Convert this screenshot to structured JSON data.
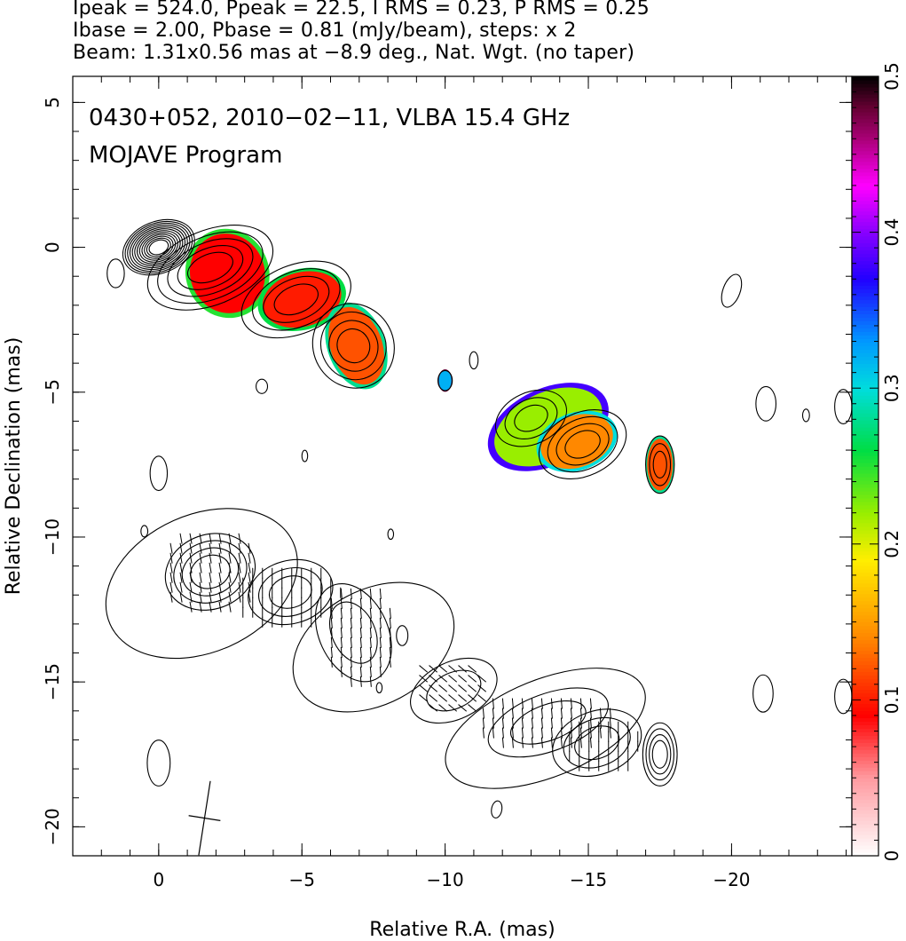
{
  "header": {
    "line1": "Ipeak = 524.0, Ppeak = 22.5, I RMS = 0.23, P RMS = 0.25",
    "line2": "Ibase = 2.00, Pbase = 0.81 (mJy/beam), steps: x 2",
    "line3": "Beam: 1.31x0.56 mas at −8.9 deg., Nat. Wgt. (no taper)"
  },
  "chart_data": {
    "type": "heatmap",
    "title": "0430+052, 2010−02−11, VLBA 15.4 GHz",
    "subtitle": "MOJAVE Program",
    "xlabel": "Relative R.A. (mas)",
    "ylabel": "Relative Declination (mas)",
    "xlim": [
      3,
      -24.2
    ],
    "ylim": [
      -21,
      5.9
    ],
    "x_ticks": [
      {
        "value": 0,
        "label": "0"
      },
      {
        "value": -5,
        "label": "−5"
      },
      {
        "value": -10,
        "label": "−10"
      },
      {
        "value": -15,
        "label": "−15"
      },
      {
        "value": -20,
        "label": "−20"
      }
    ],
    "y_ticks": [
      {
        "value": 5,
        "label": "5"
      },
      {
        "value": 0,
        "label": "0"
      },
      {
        "value": -5,
        "label": "−5"
      },
      {
        "value": -10,
        "label": "−10"
      },
      {
        "value": -15,
        "label": "−15"
      },
      {
        "value": -20,
        "label": "−20"
      }
    ],
    "colorbar": {
      "range": [
        0,
        0.5
      ],
      "ticks": [
        {
          "value": 0,
          "label": "0"
        },
        {
          "value": 0.1,
          "label": "0.1"
        },
        {
          "value": 0.2,
          "label": "0.2"
        },
        {
          "value": 0.3,
          "label": "0.3"
        },
        {
          "value": 0.4,
          "label": "0.4"
        },
        {
          "value": 0.5,
          "label": "0.5"
        }
      ],
      "stops": [
        {
          "v": 0.0,
          "color": "#ffffff"
        },
        {
          "v": 0.05,
          "color": "#ff9aa0"
        },
        {
          "v": 0.09,
          "color": "#ff0000"
        },
        {
          "v": 0.14,
          "color": "#ff8800"
        },
        {
          "v": 0.19,
          "color": "#ffee00"
        },
        {
          "v": 0.22,
          "color": "#99ee00"
        },
        {
          "v": 0.26,
          "color": "#00dd44"
        },
        {
          "v": 0.3,
          "color": "#00dddd"
        },
        {
          "v": 0.33,
          "color": "#0099ff"
        },
        {
          "v": 0.37,
          "color": "#2200ff"
        },
        {
          "v": 0.4,
          "color": "#8800ff"
        },
        {
          "v": 0.43,
          "color": "#ff00ff"
        },
        {
          "v": 0.46,
          "color": "#aa0077"
        },
        {
          "v": 0.48,
          "color": "#660033"
        },
        {
          "v": 0.5,
          "color": "#000000"
        }
      ]
    },
    "total_intensity_components": [
      {
        "x": 0.0,
        "y": 0.0,
        "a": 1.3,
        "b": 0.9,
        "angle": -22,
        "levels": 12
      },
      {
        "x": -1.8,
        "y": -0.7,
        "a": 2.3,
        "b": 1.3,
        "angle": -22,
        "levels": 5
      },
      {
        "x": -4.8,
        "y": -1.8,
        "a": 2.0,
        "b": 1.2,
        "angle": -22,
        "levels": 4
      },
      {
        "x": -6.8,
        "y": -3.4,
        "a": 1.4,
        "b": 1.5,
        "angle": -30,
        "levels": 4
      },
      {
        "x": -10.0,
        "y": -4.6,
        "a": 0.25,
        "b": 0.35,
        "angle": 0,
        "levels": 1
      },
      {
        "x": -13.0,
        "y": -5.9,
        "a": 1.3,
        "b": 0.9,
        "angle": -25,
        "levels": 3
      },
      {
        "x": -14.8,
        "y": -6.8,
        "a": 1.6,
        "b": 1.1,
        "angle": -25,
        "levels": 4
      },
      {
        "x": -17.5,
        "y": -7.5,
        "a": 0.5,
        "b": 1.0,
        "angle": 0,
        "levels": 3
      }
    ],
    "fractional_polarization_regions": [
      {
        "x": -2.4,
        "y": -0.9,
        "a": 1.3,
        "b": 1.4,
        "angle": -20,
        "value": 0.09
      },
      {
        "x": -5.0,
        "y": -1.8,
        "a": 1.4,
        "b": 0.95,
        "angle": -15,
        "value": 0.1
      },
      {
        "x": -6.9,
        "y": -3.4,
        "a": 0.9,
        "b": 1.4,
        "angle": -20,
        "value": 0.12
      },
      {
        "x": -10.0,
        "y": -4.6,
        "a": 0.22,
        "b": 0.35,
        "angle": 0,
        "value": 0.32
      },
      {
        "x": -13.6,
        "y": -6.2,
        "a": 2.0,
        "b": 1.2,
        "angle": -25,
        "value": 0.22
      },
      {
        "x": -14.6,
        "y": -6.7,
        "a": 1.3,
        "b": 0.9,
        "angle": -20,
        "value": 0.14
      },
      {
        "x": -17.5,
        "y": -7.5,
        "a": 0.45,
        "b": 0.9,
        "angle": 0,
        "value": 0.12
      }
    ],
    "polarized_intensity_components": [
      {
        "x": -1.8,
        "y": -11.2,
        "a": 1.6,
        "b": 1.3,
        "angle": -20,
        "levels": 4
      },
      {
        "x": -4.6,
        "y": -11.9,
        "a": 1.5,
        "b": 1.1,
        "angle": -15,
        "levels": 3
      },
      {
        "x": -6.8,
        "y": -13.3,
        "a": 1.2,
        "b": 1.8,
        "angle": -25,
        "levels": 2
      },
      {
        "x": -10.3,
        "y": -15.3,
        "a": 1.6,
        "b": 1.0,
        "angle": -25,
        "levels": 2
      },
      {
        "x": -13.6,
        "y": -16.4,
        "a": 2.2,
        "b": 1.0,
        "angle": -20,
        "levels": 2
      },
      {
        "x": -15.3,
        "y": -17.1,
        "a": 1.6,
        "b": 1.1,
        "angle": -20,
        "levels": 3
      },
      {
        "x": -17.5,
        "y": -17.5,
        "a": 0.6,
        "b": 1.1,
        "angle": 0,
        "levels": 4
      }
    ],
    "evpa_regions": [
      {
        "x": -1.8,
        "y": -11.2,
        "a": 1.7,
        "b": 1.5,
        "angle": 10
      },
      {
        "x": -4.5,
        "y": -12.0,
        "a": 1.9,
        "b": 1.1,
        "angle": 20
      },
      {
        "x": -7.0,
        "y": -13.4,
        "a": 1.3,
        "b": 1.8,
        "angle": 15
      },
      {
        "x": -10.2,
        "y": -15.2,
        "a": 1.3,
        "b": 1.0,
        "angle": -30
      },
      {
        "x": -13.5,
        "y": -16.4,
        "a": 2.5,
        "b": 1.0,
        "angle": 15
      },
      {
        "x": -15.4,
        "y": -17.2,
        "a": 1.4,
        "b": 1.0,
        "angle": 20
      }
    ],
    "noise_contours": [
      {
        "x": -1.5,
        "y": -11.6,
        "a": 3.5,
        "b": 2.4,
        "angle": -24,
        "rx_only": false,
        "large": true
      },
      {
        "x": -7.5,
        "y": -13.8,
        "a": 3.0,
        "b": 2.0,
        "angle": -28,
        "large": true
      },
      {
        "x": -13.5,
        "y": -16.6,
        "a": 3.7,
        "b": 1.7,
        "angle": -22,
        "large": true
      },
      {
        "x": 0.0,
        "y": -7.8,
        "a": 0.3,
        "b": 0.6,
        "angle": 0
      },
      {
        "x": -20.0,
        "y": -1.5,
        "a": 0.3,
        "b": 0.6,
        "angle": 20
      },
      {
        "x": -21.2,
        "y": -5.4,
        "a": 0.35,
        "b": 0.6,
        "angle": 0
      },
      {
        "x": -22.6,
        "y": -5.8,
        "a": 0.12,
        "b": 0.22,
        "angle": 0
      },
      {
        "x": -11.0,
        "y": -3.9,
        "a": 0.15,
        "b": 0.3,
        "angle": 0
      },
      {
        "x": -5.1,
        "y": -7.2,
        "a": 0.1,
        "b": 0.2,
        "angle": 0
      },
      {
        "x": -3.6,
        "y": -4.8,
        "a": 0.2,
        "b": 0.25,
        "angle": 0
      },
      {
        "x": 1.5,
        "y": -0.9,
        "a": 0.3,
        "b": 0.5,
        "angle": 0
      },
      {
        "x": 0.5,
        "y": -9.8,
        "a": 0.12,
        "b": 0.2,
        "angle": 0
      },
      {
        "x": -8.1,
        "y": -9.9,
        "a": 0.1,
        "b": 0.18,
        "angle": 0
      },
      {
        "x": -8.5,
        "y": -13.4,
        "a": 0.2,
        "b": 0.35,
        "angle": 0
      },
      {
        "x": -7.7,
        "y": -15.2,
        "a": 0.1,
        "b": 0.18,
        "angle": 0
      },
      {
        "x": -11.8,
        "y": -19.4,
        "a": 0.18,
        "b": 0.3,
        "angle": 10
      },
      {
        "x": 0.0,
        "y": -17.8,
        "a": 0.4,
        "b": 0.8,
        "angle": 0
      },
      {
        "x": -21.1,
        "y": -15.4,
        "a": 0.35,
        "b": 0.65,
        "angle": 0
      },
      {
        "x": -23.9,
        "y": -5.5,
        "a": 0.3,
        "b": 0.6,
        "angle": 0
      },
      {
        "x": -23.9,
        "y": -15.5,
        "a": 0.3,
        "b": 0.6,
        "angle": 0
      }
    ],
    "beams": [
      {
        "x": -1.6,
        "y": -19.7,
        "major": 1.31,
        "minor": 0.56,
        "pa": -8.9
      }
    ]
  }
}
